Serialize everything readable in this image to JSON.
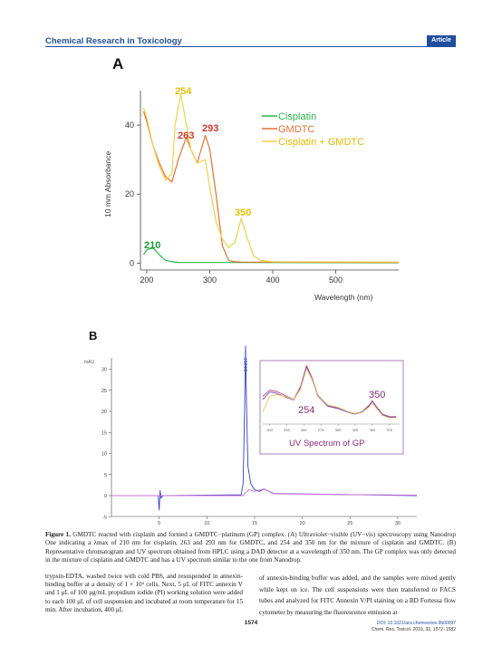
{
  "header": {
    "journal": "Chemical Research in Toxicology",
    "badge": "Article"
  },
  "figure_a": {
    "panel_label": "A",
    "ylabel": "10 mm Absorbance",
    "xlabel": "Wavelength (nm)",
    "x_ticks": [
      "200",
      "300",
      "400",
      "500"
    ],
    "y_ticks": [
      "0",
      "20",
      "40"
    ],
    "legend": [
      "Cisplatin",
      "GMDTC",
      "Cisplatin + GMDTC"
    ],
    "colors": {
      "cisplatin": "#2bb54a",
      "gmdtc": "#e8702e",
      "mix": "#ecd24a"
    },
    "peak_labels": [
      {
        "text": "254",
        "series": "Cisplatin + GMDTC",
        "color": "#e6c000"
      },
      {
        "text": "263",
        "series": "GMDTC",
        "color": "#d93a2a"
      },
      {
        "text": "293",
        "series": "GMDTC",
        "color": "#d93a2a"
      },
      {
        "text": "350",
        "series": "Cisplatin + GMDTC",
        "color": "#e6c000"
      },
      {
        "text": "210",
        "series": "Cisplatin",
        "color": "#1e9c3a"
      }
    ]
  },
  "figure_b": {
    "panel_label": "B",
    "y_unit": "mAU",
    "y_ticks": [
      "-5",
      "0",
      "5",
      "10",
      "15",
      "20",
      "25",
      "30"
    ],
    "x_ticks": [
      "5",
      "10",
      "15",
      "20",
      "25",
      "30"
    ],
    "peak_label": "14.057",
    "inset": {
      "x_ticks": [
        "200",
        "225",
        "250",
        "275",
        "300",
        "325",
        "350",
        "375"
      ],
      "peak_labels": [
        "254",
        "350"
      ],
      "title": "UV Spectrum of GP"
    }
  },
  "chart_data": [
    {
      "type": "line",
      "title": "",
      "xlabel": "Wavelength (nm)",
      "ylabel": "10 mm Absorbance",
      "xlim": [
        190,
        600
      ],
      "ylim": [
        -2,
        50
      ],
      "legend_position": "top-right",
      "grid": false,
      "series": [
        {
          "name": "Cisplatin",
          "color": "#2bb54a",
          "x": [
            195,
            200,
            205,
            210,
            215,
            220,
            225,
            230,
            240,
            250,
            600
          ],
          "y": [
            2.5,
            3.8,
            4.2,
            4.3,
            3.5,
            2.4,
            1.5,
            0.8,
            0.4,
            0.2,
            0.1
          ]
        },
        {
          "name": "GMDTC",
          "color": "#e8702e",
          "x": [
            195,
            200,
            210,
            220,
            230,
            240,
            250,
            263,
            270,
            280,
            293,
            300,
            310,
            320,
            330,
            340,
            350,
            600
          ],
          "y": [
            44,
            41,
            34,
            29,
            25,
            23.5,
            30,
            36.5,
            33,
            29,
            37,
            33,
            20,
            5,
            0.8,
            0.4,
            0.3,
            0.2
          ]
        },
        {
          "name": "Cisplatin + GMDTC",
          "color": "#ecd24a",
          "x": [
            195,
            200,
            210,
            220,
            230,
            240,
            245,
            254,
            260,
            270,
            280,
            293,
            300,
            310,
            320,
            330,
            340,
            350,
            360,
            370,
            380,
            400,
            600
          ],
          "y": [
            45,
            42,
            34,
            28,
            24,
            26,
            40,
            49,
            43,
            33,
            29,
            30,
            22,
            12,
            7,
            4.5,
            6,
            13,
            7,
            2,
            0.8,
            0.4,
            0.3
          ]
        }
      ]
    },
    {
      "type": "line",
      "title": "",
      "ylabel": "mAU",
      "xlim": [
        0,
        32
      ],
      "ylim": [
        -5,
        35
      ],
      "series": [
        {
          "name": "",
          "color": "#3040d0",
          "x": [
            0,
            4.9,
            5.0,
            5.1,
            5.2,
            5.4,
            13.6,
            13.8,
            13.95,
            14.05,
            14.15,
            14.3,
            14.6,
            15.0,
            15.5,
            16.0,
            16.5,
            17,
            32
          ],
          "y": [
            0,
            0,
            -3.4,
            1.2,
            -0.6,
            0,
            0.2,
            3,
            20,
            35.5,
            22,
            7,
            2.8,
            1.4,
            1.0,
            1.6,
            1.0,
            0.5,
            0
          ]
        },
        {
          "name": "",
          "color": "#d26fd6",
          "x": [
            0,
            13.8,
            14.0,
            14.4,
            15.0,
            16.0,
            16.5,
            17,
            32
          ],
          "y": [
            0,
            0,
            0.6,
            1.4,
            1.0,
            1.6,
            1.0,
            0.4,
            0.1
          ]
        }
      ]
    },
    {
      "type": "line",
      "title": "UV Spectrum of GP",
      "xlabel": "",
      "xlim": [
        190,
        390
      ],
      "series": [
        {
          "name": "",
          "color": "#c04080",
          "x": [
            190,
            200,
            210,
            225,
            235,
            245,
            254,
            262,
            270,
            285,
            300,
            315,
            325,
            335,
            345,
            350,
            355,
            365,
            375,
            385
          ],
          "y": [
            0.45,
            0.55,
            0.53,
            0.45,
            0.4,
            0.6,
            0.95,
            0.75,
            0.48,
            0.3,
            0.26,
            0.2,
            0.17,
            0.2,
            0.3,
            0.38,
            0.3,
            0.16,
            0.12,
            0.12
          ]
        },
        {
          "name": "",
          "color": "#7b4fc9",
          "x": [
            190,
            200,
            210,
            225,
            235,
            245,
            254,
            262,
            270,
            285,
            300,
            315,
            325,
            335,
            345,
            350,
            355,
            365,
            375,
            385
          ],
          "y": [
            0.4,
            0.52,
            0.5,
            0.43,
            0.39,
            0.58,
            0.93,
            0.73,
            0.46,
            0.29,
            0.25,
            0.19,
            0.16,
            0.19,
            0.29,
            0.37,
            0.29,
            0.15,
            0.11,
            0.11
          ]
        },
        {
          "name": "",
          "color": "#e8c45a",
          "x": [
            190,
            200,
            210,
            225,
            235,
            245,
            254,
            262,
            270,
            285,
            300,
            315,
            325,
            335,
            345,
            350,
            355,
            365,
            375,
            385
          ],
          "y": [
            0.2,
            0.45,
            0.48,
            0.44,
            0.4,
            0.56,
            0.9,
            0.72,
            0.47,
            0.31,
            0.27,
            0.2,
            0.17,
            0.19,
            0.27,
            0.34,
            0.27,
            0.14,
            0.1,
            0.1
          ]
        }
      ]
    }
  ],
  "caption": {
    "label": "Figure 1.",
    "text": " GMDTC reacted with cisplatin and formed a GMDTC−platinum (GP) complex. (A) Ultraviolet−visible (UV−vis) spectroscopy using Nanodrop One indicating a λmax of 210 nm for cisplatin, 263 and 293 nm for GMDTC, and 254 and 350 nm for the mixture of cisplatin and GMDTC. (B) Representative chromatogram and UV spectrum obtained from HPLC using a DAD detector at a wavelength of 350 nm. The GP complex was only detected in the mixture of cisplatin and GMDTC and has a UV spectrum similar to the one from Nanodrop."
  },
  "body": {
    "left": "trypsin-EDTA, washed twice with cold PBS, and resuspended in annexin-binding buffer at a density of 1 × 10⁶ cells. Next, 5 μL of FITC annexin V and 1 μL of 100 μg/mL propidium iodide (PI) working solution were added to each 100 μL of cell suspension and incubated at room temperature for 15 min. After incubation, 400 μL",
    "right": "of annexin-binding buffer was added, and the samples were mixed gently while kept on ice. The cell suspensions were then transferred to FACS tubes and analyzed for FITC Annexin V/PI staining on a BD Fortessa flow cytometer by measuring the fluorescence emission at"
  },
  "footer": {
    "page": "1574",
    "doi": "DOI: 10.1021/acs.chemrestox.9b00097",
    "citation": "Chem. Res. Toxicol. 2019, 32, 1572−1582"
  }
}
